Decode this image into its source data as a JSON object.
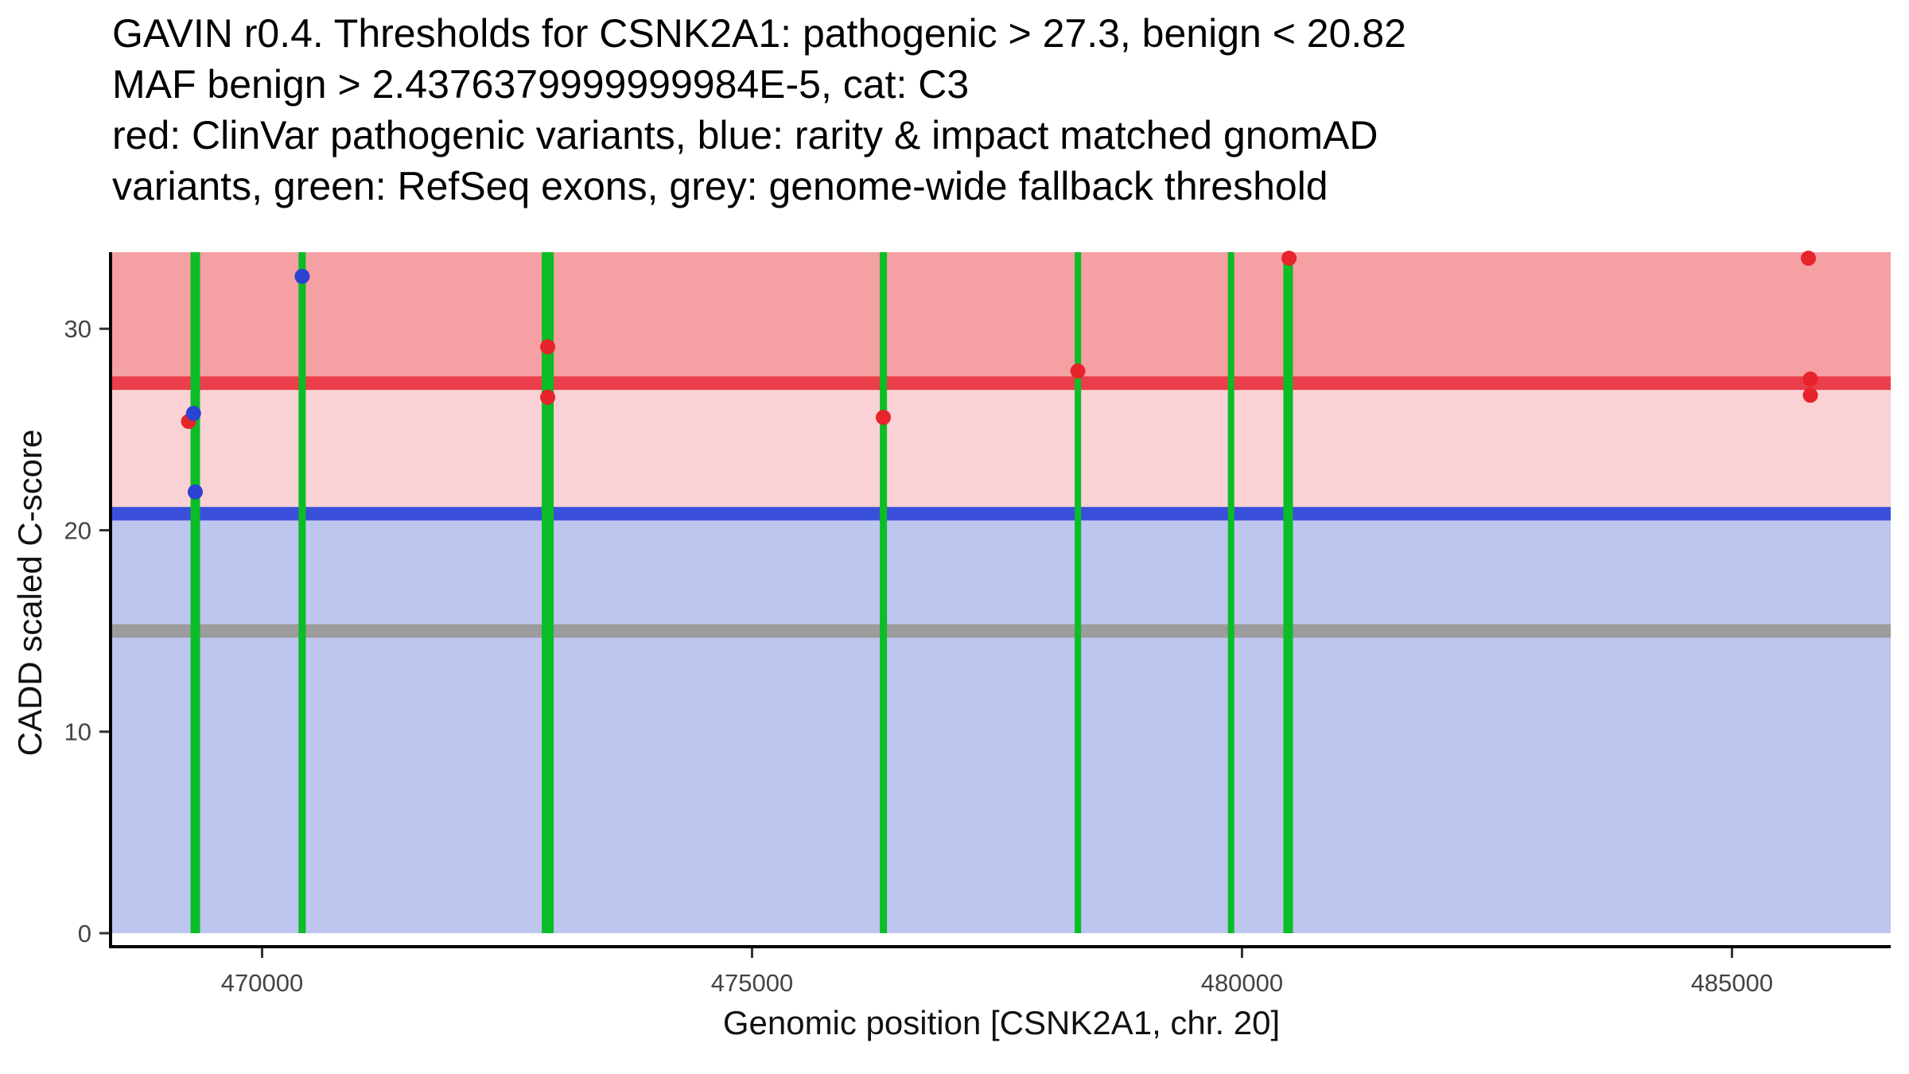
{
  "chart_data": {
    "type": "scatter",
    "title_lines": [
      "GAVIN r0.4. Thresholds for CSNK2A1: pathogenic > 27.3, benign < 20.82",
      "MAF benign > 2.4376379999999984E-5, cat: C3",
      "red: ClinVar pathogenic variants, blue: rarity & impact matched gnomAD",
      "variants, green: RefSeq exons, grey: genome-wide fallback threshold"
    ],
    "xlabel": "Genomic position [CSNK2A1, chr. 20]",
    "ylabel": "CADD scaled C-score",
    "xlim": [
      468470,
      486620
    ],
    "ylim": [
      0,
      33.8
    ],
    "x_ticks": [
      470000,
      475000,
      480000,
      485000
    ],
    "y_ticks": [
      0,
      10,
      20,
      30
    ],
    "grid": false,
    "legend": "none",
    "thresholds": {
      "pathogenic_gt": 27.3,
      "benign_lt": 20.82,
      "maf_benign_gt": "2.4376379999999984E-5",
      "category": "C3",
      "genome_wide_fallback": 15
    },
    "regions": [
      {
        "name": "pathogenic-zone",
        "y_from": 27.3,
        "y_to": 33.8,
        "color": "#f5a0a2"
      },
      {
        "name": "intermediate-zone",
        "y_from": 20.82,
        "y_to": 27.3,
        "color": "#fad2d5"
      },
      {
        "name": "benign-zone",
        "y_from": 0,
        "y_to": 20.82,
        "color": "#bec5ef"
      }
    ],
    "hlines": [
      {
        "name": "pathogenic-threshold-line",
        "y": 27.3,
        "color": "#ea3e4b",
        "thickness_px": 17
      },
      {
        "name": "benign-threshold-line",
        "y": 20.82,
        "color": "#3a50da",
        "thickness_px": 17
      },
      {
        "name": "fallback-threshold-line",
        "y": 15,
        "color": "#9c9c9c",
        "thickness_px": 17
      }
    ],
    "exons": {
      "color": "#0bbd26",
      "ranges": [
        [
          469270,
          469367
        ],
        [
          470372,
          470446
        ],
        [
          472854,
          472976
        ],
        [
          476304,
          476377
        ],
        [
          478293,
          478358
        ],
        [
          479856,
          479921
        ],
        [
          480422,
          480520
        ]
      ]
    },
    "series": [
      {
        "name": "ClinVar pathogenic variants",
        "color": "#e7232b",
        "point_name": "pathogenic-variant-point",
        "points": [
          [
            469250,
            25.4
          ],
          [
            472915,
            29.1
          ],
          [
            472915,
            26.6
          ],
          [
            476340,
            25.6
          ],
          [
            478325,
            27.9
          ],
          [
            480480,
            33.5
          ],
          [
            485780,
            33.5
          ],
          [
            485800,
            27.5
          ],
          [
            485800,
            26.7
          ]
        ]
      },
      {
        "name": "rarity & impact matched gnomAD variants",
        "color": "#2b43d0",
        "point_name": "gnomad-variant-point",
        "points": [
          [
            469300,
            25.8
          ],
          [
            469318,
            21.9
          ],
          [
            470409,
            32.6
          ]
        ]
      }
    ],
    "axis_color": "#000000",
    "tick_color": "#333333",
    "tick_label_color": "#444444",
    "background_color": "#ffffff"
  }
}
